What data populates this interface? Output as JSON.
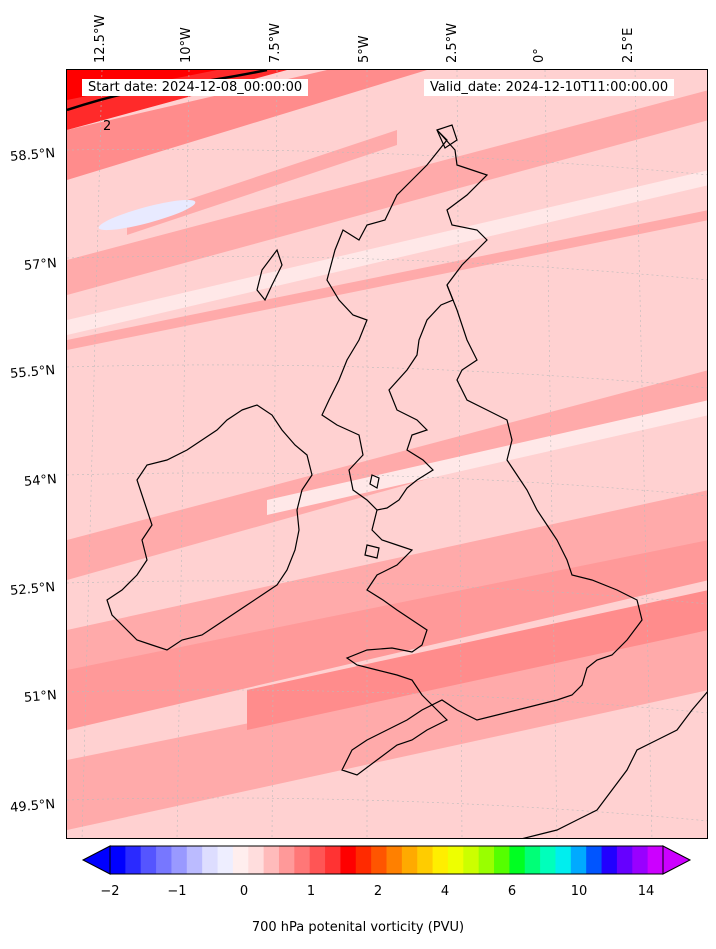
{
  "header": {
    "start_date": "Start date: 2024-12-08_00:00:00",
    "valid_date": "Valid_date: 2024-12-10T11:00:00.00"
  },
  "map": {
    "longitude_labels": [
      "12.5°W",
      "10°W",
      "7.5°W",
      "5°W",
      "2.5°W",
      "0°",
      "2.5°E"
    ],
    "latitude_labels": [
      "58.5°N",
      "57°N",
      "55.5°N",
      "54°N",
      "52.5°N",
      "51°N",
      "49.5°N"
    ],
    "contour_label": "2",
    "fill_colors": {
      "background": "#ffd1d1",
      "medium": "#ffaaaa",
      "strong": "#ff8c8c",
      "light": "#ffe8e8",
      "very_strong": "#ff2a2a",
      "blue_patch": "#e8eaff"
    },
    "coastline_color": "#000000"
  },
  "colorbar": {
    "label": "700 hPa potenital vorticity (PVU)",
    "tick_labels": [
      "−2",
      "−1",
      "0",
      "1",
      "2",
      "4",
      "6",
      "10",
      "14"
    ],
    "colors": [
      "#0000ff",
      "#2a2aff",
      "#5555ff",
      "#7777ff",
      "#9999ff",
      "#bbbbff",
      "#ddddff",
      "#eeeeff",
      "#ffeeee",
      "#ffdddd",
      "#ffbbbb",
      "#ff9999",
      "#ff7777",
      "#ff5555",
      "#ff3333",
      "#ff0000",
      "#ff2a00",
      "#ff5500",
      "#ff8000",
      "#ffaa00",
      "#ffcc00",
      "#ffee00",
      "#eeff00",
      "#ccff00",
      "#99ff00",
      "#55ff00",
      "#00ff22",
      "#00ff77",
      "#00ffbb",
      "#00eeee",
      "#00aaff",
      "#0055ff",
      "#2200ff",
      "#6600ff",
      "#9900ff",
      "#cc00ff"
    ]
  }
}
